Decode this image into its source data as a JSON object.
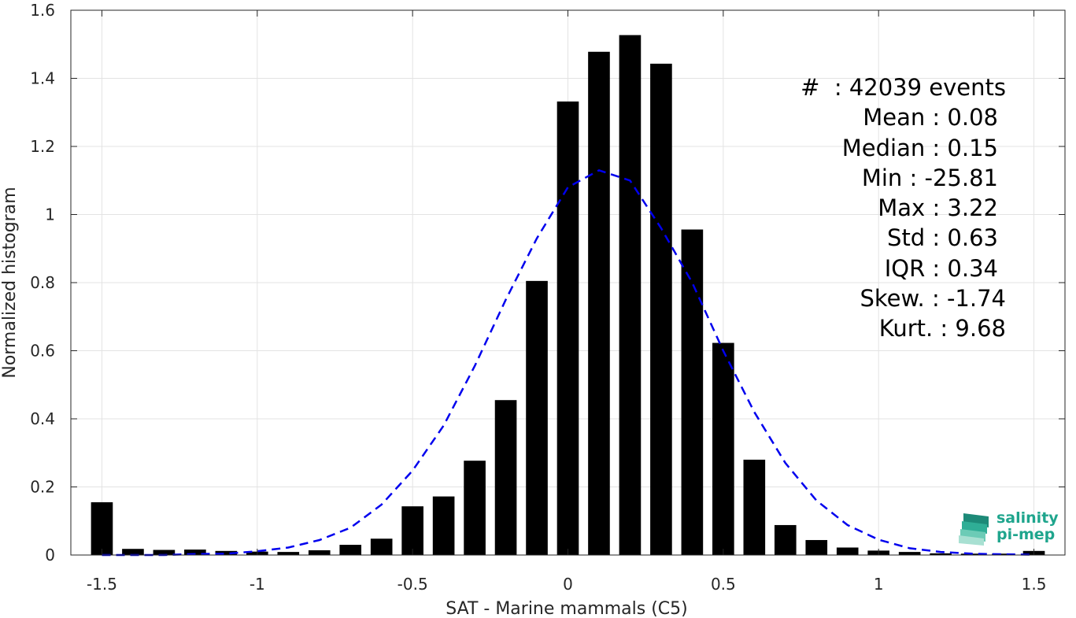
{
  "chart_data": {
    "type": "bar",
    "xlabel": "SAT - Marine mammals (C5)",
    "ylabel": "Normalized histogram",
    "xlim": [
      -1.6,
      1.6
    ],
    "ylim": [
      0,
      1.6
    ],
    "xticks": [
      -1.5,
      -1,
      -0.5,
      0,
      0.5,
      1,
      1.5
    ],
    "xtick_labels": [
      "-1.5",
      "-1",
      "-0.5",
      "0",
      "0.5",
      "1",
      "1.5"
    ],
    "yticks": [
      0,
      0.2,
      0.4,
      0.6,
      0.8,
      1,
      1.2,
      1.4,
      1.6
    ],
    "ytick_labels": [
      "0",
      "0.2",
      "0.4",
      "0.6",
      "0.8",
      "1",
      "1.2",
      "1.4",
      "1.6"
    ],
    "grid": true,
    "bar_color": "#000000",
    "fit_color": "#0000ee",
    "bar_width": 0.07,
    "x": [
      -1.5,
      -1.4,
      -1.3,
      -1.2,
      -1.1,
      -1.0,
      -0.9,
      -0.8,
      -0.7,
      -0.6,
      -0.5,
      -0.4,
      -0.3,
      -0.2,
      -0.1,
      0.0,
      0.1,
      0.2,
      0.3,
      0.4,
      0.5,
      0.6,
      0.7,
      0.8,
      0.9,
      1.0,
      1.1,
      1.2,
      1.3,
      1.4,
      1.5
    ],
    "values": [
      0.155,
      0.018,
      0.015,
      0.016,
      0.012,
      0.01,
      0.009,
      0.014,
      0.03,
      0.048,
      0.143,
      0.172,
      0.277,
      0.455,
      0.805,
      1.332,
      1.478,
      1.527,
      1.443,
      0.956,
      0.623,
      0.28,
      0.088,
      0.044,
      0.022,
      0.013,
      0.009,
      0.005,
      0.004,
      0.004,
      0.012
    ],
    "fit": {
      "type": "gaussian",
      "x": [
        -1.5,
        -1.4,
        -1.3,
        -1.2,
        -1.1,
        -1.0,
        -0.9,
        -0.8,
        -0.7,
        -0.6,
        -0.5,
        -0.4,
        -0.3,
        -0.2,
        -0.1,
        0.0,
        0.1,
        0.2,
        0.3,
        0.4,
        0.5,
        0.6,
        0.7,
        0.8,
        0.9,
        1.0,
        1.1,
        1.2,
        1.3,
        1.4,
        1.5
      ],
      "y": [
        0.0,
        0.0,
        0.0,
        0.003,
        0.004,
        0.011,
        0.022,
        0.044,
        0.08,
        0.148,
        0.248,
        0.38,
        0.555,
        0.75,
        0.93,
        1.08,
        1.13,
        1.1,
        0.96,
        0.8,
        0.6,
        0.42,
        0.27,
        0.16,
        0.088,
        0.045,
        0.02,
        0.009,
        0.004,
        0.002,
        0.001
      ]
    },
    "stats": [
      "#  : 42039 events",
      "Mean : 0.08",
      "Median : 0.15",
      "Min : -25.81",
      "Max : 3.22",
      "Std : 0.63",
      "IQR : 0.34",
      "Skew. : -1.74",
      "Kurt. : 9.68"
    ]
  },
  "logo": {
    "line1": "salinity",
    "line2": "pi-mep"
  }
}
